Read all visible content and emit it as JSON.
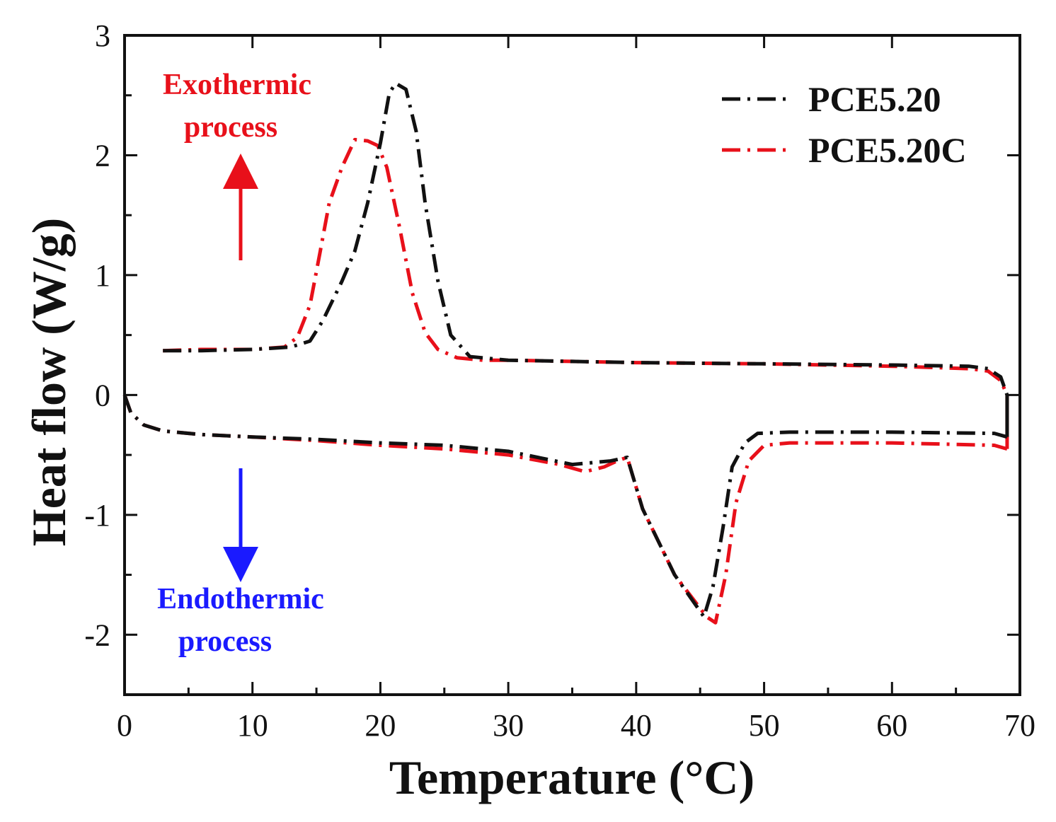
{
  "chart_data": {
    "type": "line",
    "title": "",
    "xlabel": "Temperature (°C)",
    "ylabel": "Heat flow (W/g)",
    "xlim": [
      0,
      70
    ],
    "ylim": [
      -2.5,
      3
    ],
    "xticks": [
      "0",
      "10",
      "20",
      "30",
      "40",
      "50",
      "60",
      "70"
    ],
    "yticks": [
      "-2",
      "-1",
      "0",
      "1",
      "2",
      "3"
    ],
    "legend_position": "top-right",
    "grid": false,
    "annotations": {
      "exo_line1": "Exothermic",
      "exo_line2": "process",
      "endo_line1": "Endothermic",
      "endo_line2": "process",
      "exo_color": "#e8101a",
      "endo_color": "#1a1aff"
    },
    "series": [
      {
        "name": "PCE5.20",
        "color": "#111111",
        "style": "dash-dot",
        "cooling": {
          "x": [
            3,
            6,
            10,
            13,
            14.5,
            15.5,
            17,
            18,
            19,
            20,
            20.7,
            21.2,
            22,
            22.8,
            23.5,
            24.5,
            25.5,
            27,
            30,
            35,
            40,
            50,
            60,
            66,
            67.5,
            68.5,
            69
          ],
          "y": [
            0.37,
            0.37,
            0.38,
            0.4,
            0.45,
            0.62,
            0.95,
            1.2,
            1.6,
            2.1,
            2.52,
            2.6,
            2.55,
            2.2,
            1.6,
            0.95,
            0.5,
            0.32,
            0.29,
            0.28,
            0.27,
            0.26,
            0.25,
            0.24,
            0.22,
            0.15,
            0.0
          ]
        },
        "heating": {
          "x": [
            0,
            0.5,
            1.5,
            3,
            6,
            10,
            15,
            20,
            25,
            30,
            35,
            38,
            39.3,
            40.5,
            43,
            45.3,
            46,
            46.8,
            47.5,
            48.5,
            49.5,
            52,
            60,
            68,
            69
          ],
          "y": [
            0.0,
            -0.15,
            -0.25,
            -0.3,
            -0.33,
            -0.35,
            -0.37,
            -0.4,
            -0.42,
            -0.47,
            -0.58,
            -0.55,
            -0.52,
            -0.95,
            -1.5,
            -1.85,
            -1.6,
            -1.1,
            -0.6,
            -0.4,
            -0.32,
            -0.31,
            -0.31,
            -0.32,
            -0.35
          ]
        }
      },
      {
        "name": "PCE5.20C",
        "color": "#e8101a",
        "style": "dash-dot",
        "cooling": {
          "x": [
            3,
            6,
            10,
            12.5,
            13.5,
            14.5,
            15.3,
            16,
            17,
            18,
            19,
            19.8,
            20.5,
            21.5,
            22.5,
            23.5,
            24.5,
            26,
            28,
            30,
            35,
            40,
            50,
            60,
            66,
            67.5,
            68.5,
            69
          ],
          "y": [
            0.37,
            0.38,
            0.38,
            0.4,
            0.48,
            0.75,
            1.2,
            1.6,
            1.9,
            2.13,
            2.12,
            2.08,
            1.9,
            1.4,
            0.85,
            0.52,
            0.38,
            0.31,
            0.29,
            0.29,
            0.28,
            0.27,
            0.26,
            0.24,
            0.22,
            0.2,
            0.12,
            0.0
          ]
        },
        "heating": {
          "x": [
            0,
            0.5,
            1.5,
            3,
            6,
            10,
            15,
            20,
            25,
            30,
            34,
            36,
            37.5,
            38.5,
            39.3,
            40.5,
            43,
            45.5,
            46.2,
            47,
            47.8,
            48.8,
            50,
            52,
            60,
            68,
            69
          ],
          "y": [
            0.0,
            -0.15,
            -0.25,
            -0.3,
            -0.33,
            -0.35,
            -0.38,
            -0.42,
            -0.45,
            -0.5,
            -0.58,
            -0.64,
            -0.6,
            -0.55,
            -0.52,
            -0.95,
            -1.5,
            -1.85,
            -1.9,
            -1.5,
            -0.9,
            -0.55,
            -0.42,
            -0.4,
            -0.4,
            -0.42,
            -0.45
          ]
        }
      }
    ]
  }
}
